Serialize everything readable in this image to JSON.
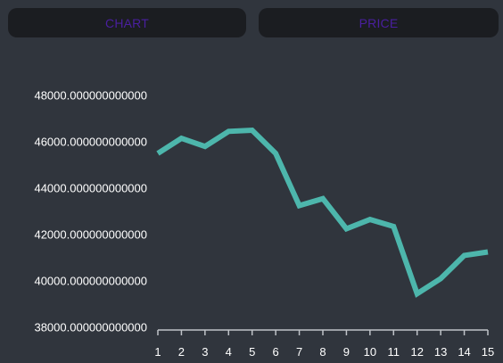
{
  "tabs": [
    {
      "label": "CHART"
    },
    {
      "label": "PRICE"
    }
  ],
  "colors": {
    "background": "#30353d",
    "tab_background": "#1b1d21",
    "tab_text": "#4a1fa0",
    "line": "#4db6ac",
    "axis": "#bfc3c8",
    "tick_text": "#ffffff"
  },
  "chart_data": {
    "type": "line",
    "title": "",
    "xlabel": "",
    "ylabel": "",
    "x": [
      1,
      2,
      3,
      4,
      5,
      6,
      7,
      8,
      9,
      10,
      11,
      12,
      13,
      14,
      15
    ],
    "series": [
      {
        "values": [
          45500,
          46150,
          45800,
          46450,
          46500,
          45500,
          43250,
          43550,
          42250,
          42650,
          42350,
          39450,
          40100,
          41100,
          41250
        ]
      }
    ],
    "ylim": [
      38000,
      48000
    ],
    "y_ticks": [
      "48000.000000000000",
      "46000.000000000000",
      "44000.000000000000",
      "42000.000000000000",
      "40000.000000000000",
      "38000.000000000000"
    ],
    "x_ticks": [
      "1",
      "2",
      "3",
      "4",
      "5",
      "6",
      "7",
      "8",
      "9",
      "10",
      "11",
      "12",
      "13",
      "14",
      "15"
    ],
    "grid": false,
    "legend": "none"
  }
}
